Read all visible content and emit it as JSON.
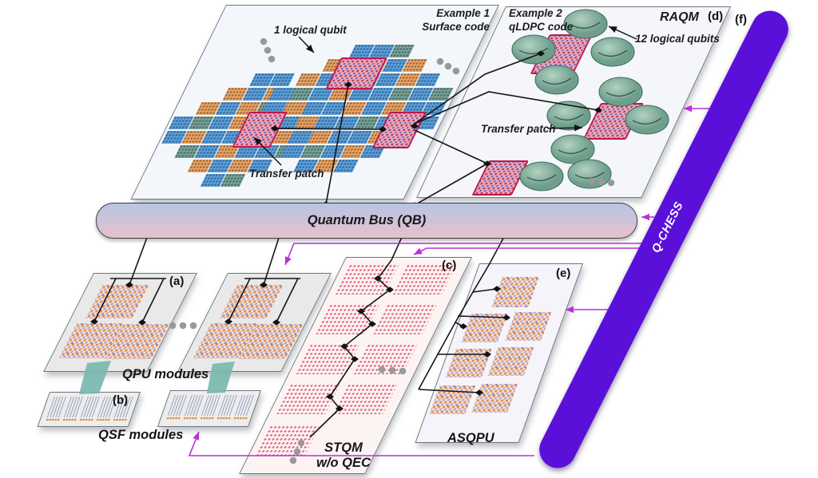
{
  "colors": {
    "magenta": "#bb2fd9",
    "purple_bar": "#5a10d8",
    "bus_top": "#b7c5e2",
    "bus_bottom": "#e9c0cd",
    "tile_blue": "#5ba0da",
    "tile_orange": "#f0a35a",
    "tile_teal": "#79a393",
    "patch_pink": "#eba6c0",
    "patch_border": "#c2164e",
    "qubit_green": "#8ab5a3",
    "ribbon_teal": "#79b7ac",
    "line_black": "#141414",
    "dot_gray": "#999999"
  },
  "raqm": {
    "example1_title": "Example 1",
    "example1_subtitle": "Surface code",
    "logical_qubit_label": "1 logical qubit",
    "transfer_patch_label": "Transfer patch",
    "example2_title": "Example 2",
    "example2_subtitle": "qLDPC code",
    "twelve_qubits_label": "12 logical qubits",
    "transfer_patch_label2": "Transfer patch",
    "title": "RAQM",
    "tag": "(d)"
  },
  "bus": {
    "label": "Quantum Bus (QB)"
  },
  "modules": {
    "qpu_tag": "(a)",
    "qpu_label": "QPU modules",
    "qsf_tag": "(b)",
    "qsf_label": "QSF modules",
    "stqm_tag": "(c)",
    "stqm_label_line1": "STQM",
    "stqm_label_line2": "w/o QEC",
    "asqpu_tag": "(e)",
    "asqpu_label": "ASQPU"
  },
  "qchess": {
    "label": "Q-CHESS",
    "tag": "(f)"
  }
}
